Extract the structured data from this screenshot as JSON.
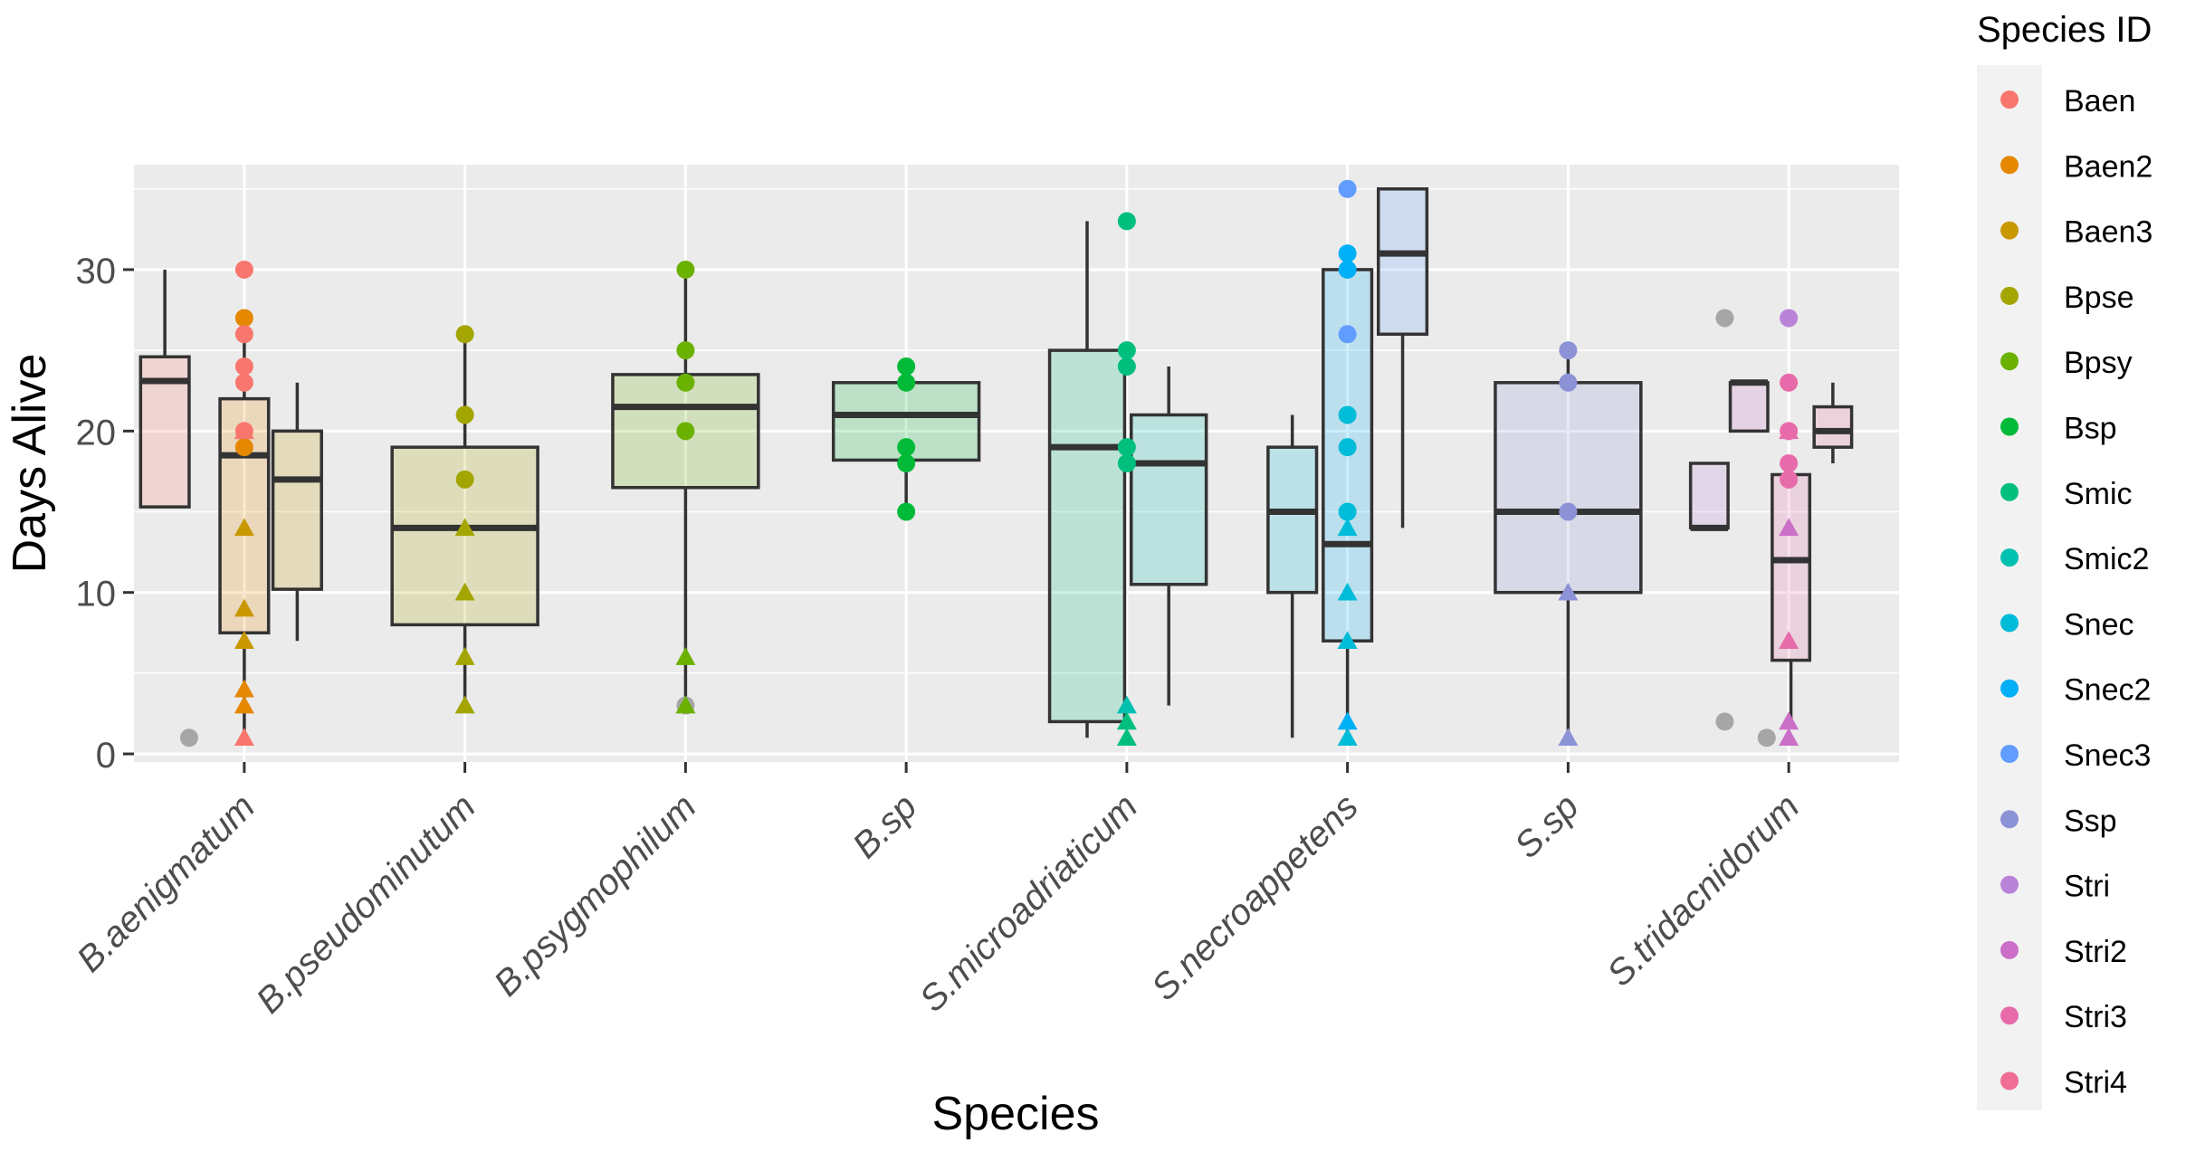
{
  "chart_data": {
    "type": "boxplot",
    "xlabel": "Species",
    "ylabel": "Days Alive",
    "ylim": [
      -0.5,
      36.5
    ],
    "yticks": [
      0,
      10,
      20,
      30
    ],
    "yticklabels": [
      "0",
      "10",
      "20",
      "30"
    ],
    "grid": true,
    "legend": {
      "title": "Species ID",
      "placement": "right",
      "entries": [
        "Baen",
        "Baen2",
        "Baen3",
        "Bpse",
        "Bpsy",
        "Bsp",
        "Smic",
        "Smic2",
        "Snec",
        "Snec2",
        "Snec3",
        "Ssp",
        "Stri",
        "Stri2",
        "Stri3",
        "Stri4"
      ]
    },
    "colors": {
      "Baen": "#F8766D",
      "Baen2": "#E58700",
      "Baen3": "#C99800",
      "Bpse": "#A3A500",
      "Bpsy": "#6BB100",
      "Bsp": "#00BA38",
      "Smic": "#00BF7D",
      "Smic2": "#00C0AF",
      "Snec": "#00BCD8",
      "Snec2": "#00B0F6",
      "Snec3": "#619CFF",
      "Ssp": "#8B93D6",
      "Stri": "#B983D9",
      "Stri2": "#CB6FC8",
      "Stri3": "#E76BAA",
      "Stri4": "#F06D96",
      "NA": "#A6A6A6"
    },
    "categories": [
      "B.aenigmatum",
      "B.pseudominutum",
      "B.psygmophilum",
      "B.sp",
      "S.microadriaticum",
      "S.necroappetens",
      "S.sp",
      "S.tridacnidorum"
    ],
    "boxes": [
      {
        "category": 0,
        "offset": -0.36,
        "width": 0.22,
        "fill": "#F8766D",
        "q1": 15.3,
        "median": 23.1,
        "q3": 24.6,
        "whisker_low": 15.3,
        "whisker_high": 30
      },
      {
        "category": 0,
        "offset": 0.0,
        "width": 0.22,
        "fill": "#E58700",
        "q1": 7.5,
        "median": 18.5,
        "q3": 22,
        "whisker_low": 1,
        "whisker_high": 27
      },
      {
        "category": 0,
        "offset": 0.24,
        "width": 0.22,
        "fill": "#C99800",
        "q1": 10.2,
        "median": 17,
        "q3": 20,
        "whisker_low": 7,
        "whisker_high": 23
      },
      {
        "category": 1,
        "offset": 0.0,
        "width": 0.66,
        "fill": "#A3A500",
        "q1": 8,
        "median": 14,
        "q3": 19,
        "whisker_low": 3,
        "whisker_high": 26
      },
      {
        "category": 2,
        "offset": 0.0,
        "width": 0.66,
        "fill": "#6BB100",
        "q1": 16.5,
        "median": 21.5,
        "q3": 23.5,
        "whisker_low": 3,
        "whisker_high": 30
      },
      {
        "category": 3,
        "offset": 0.0,
        "width": 0.66,
        "fill": "#00BA38",
        "q1": 18.2,
        "median": 21,
        "q3": 23,
        "whisker_low": 15,
        "whisker_high": 24
      },
      {
        "category": 4,
        "offset": -0.18,
        "width": 0.34,
        "fill": "#00BF7D",
        "q1": 2,
        "median": 19,
        "q3": 25,
        "whisker_low": 1,
        "whisker_high": 33
      },
      {
        "category": 4,
        "offset": 0.19,
        "width": 0.34,
        "fill": "#00C0AF",
        "q1": 10.5,
        "median": 18,
        "q3": 21,
        "whisker_low": 3,
        "whisker_high": 24
      },
      {
        "category": 5,
        "offset": -0.25,
        "width": 0.22,
        "fill": "#00BCD8",
        "q1": 10,
        "median": 15,
        "q3": 19,
        "whisker_low": 1,
        "whisker_high": 21
      },
      {
        "category": 5,
        "offset": 0.0,
        "width": 0.22,
        "fill": "#00B0F6",
        "q1": 7,
        "median": 13,
        "q3": 30,
        "whisker_low": 1,
        "whisker_high": 31
      },
      {
        "category": 5,
        "offset": 0.25,
        "width": 0.22,
        "fill": "#619CFF",
        "q1": 26,
        "median": 31,
        "q3": 35,
        "whisker_low": 14,
        "whisker_high": 35
      },
      {
        "category": 6,
        "offset": 0.0,
        "width": 0.66,
        "fill": "#8B93D6",
        "q1": 10,
        "median": 15,
        "q3": 23,
        "whisker_low": 1,
        "whisker_high": 25
      },
      {
        "category": 7,
        "offset": -0.36,
        "width": 0.17,
        "fill": "#B983D9",
        "q1": 14,
        "median": 14,
        "q3": 18,
        "whisker_low": 14,
        "whisker_high": 18
      },
      {
        "category": 7,
        "offset": -0.18,
        "width": 0.17,
        "fill": "#CB6FC8",
        "q1": 20,
        "median": 23,
        "q3": 23,
        "whisker_low": 20,
        "whisker_high": 23
      },
      {
        "category": 7,
        "offset": 0.01,
        "width": 0.17,
        "fill": "#E76BAA",
        "q1": 5.8,
        "median": 12,
        "q3": 17.3,
        "whisker_low": 2,
        "whisker_high": 18
      },
      {
        "category": 7,
        "offset": 0.2,
        "width": 0.17,
        "fill": "#F06D96",
        "q1": 19,
        "median": 20,
        "q3": 21.5,
        "whisker_low": 18,
        "whisker_high": 23
      }
    ],
    "points": [
      {
        "category": 0,
        "offset": -0.25,
        "y": 1,
        "id": "NA",
        "shape": "circle"
      },
      {
        "category": 0,
        "offset": 0.0,
        "y": 30,
        "id": "Baen",
        "shape": "circle"
      },
      {
        "category": 0,
        "offset": 0.0,
        "y": 27,
        "id": "Baen2",
        "shape": "circle"
      },
      {
        "category": 0,
        "offset": 0.0,
        "y": 26,
        "id": "Baen",
        "shape": "circle"
      },
      {
        "category": 0,
        "offset": 0.0,
        "y": 24,
        "id": "Baen",
        "shape": "circle"
      },
      {
        "category": 0,
        "offset": 0.0,
        "y": 23,
        "id": "Baen",
        "shape": "circle"
      },
      {
        "category": 0,
        "offset": 0.0,
        "y": 20,
        "id": "Baen",
        "shape": "circle"
      },
      {
        "category": 0,
        "offset": 0.0,
        "y": 19,
        "id": "Baen2",
        "shape": "circle"
      },
      {
        "category": 0,
        "offset": 0.0,
        "y": 20,
        "id": "Baen",
        "shape": "triangle"
      },
      {
        "category": 0,
        "offset": 0.0,
        "y": 14,
        "id": "Baen3",
        "shape": "triangle"
      },
      {
        "category": 0,
        "offset": 0.0,
        "y": 9,
        "id": "Baen3",
        "shape": "triangle"
      },
      {
        "category": 0,
        "offset": 0.0,
        "y": 7,
        "id": "Baen3",
        "shape": "triangle"
      },
      {
        "category": 0,
        "offset": 0.0,
        "y": 4,
        "id": "Baen2",
        "shape": "triangle"
      },
      {
        "category": 0,
        "offset": 0.0,
        "y": 3,
        "id": "Baen2",
        "shape": "triangle"
      },
      {
        "category": 0,
        "offset": 0.0,
        "y": 1,
        "id": "Baen",
        "shape": "triangle"
      },
      {
        "category": 1,
        "offset": 0.0,
        "y": 26,
        "id": "Bpse",
        "shape": "circle"
      },
      {
        "category": 1,
        "offset": 0.0,
        "y": 21,
        "id": "Bpse",
        "shape": "circle"
      },
      {
        "category": 1,
        "offset": 0.0,
        "y": 17,
        "id": "Bpse",
        "shape": "circle"
      },
      {
        "category": 1,
        "offset": 0.0,
        "y": 14,
        "id": "Bpse",
        "shape": "triangle"
      },
      {
        "category": 1,
        "offset": 0.0,
        "y": 10,
        "id": "Bpse",
        "shape": "triangle"
      },
      {
        "category": 1,
        "offset": 0.0,
        "y": 6,
        "id": "Bpse",
        "shape": "triangle"
      },
      {
        "category": 1,
        "offset": 0.0,
        "y": 3,
        "id": "Bpse",
        "shape": "triangle"
      },
      {
        "category": 2,
        "offset": 0.0,
        "y": 30,
        "id": "Bpsy",
        "shape": "circle"
      },
      {
        "category": 2,
        "offset": 0.0,
        "y": 25,
        "id": "Bpsy",
        "shape": "circle"
      },
      {
        "category": 2,
        "offset": 0.0,
        "y": 23,
        "id": "Bpsy",
        "shape": "circle"
      },
      {
        "category": 2,
        "offset": 0.0,
        "y": 20,
        "id": "Bpsy",
        "shape": "circle"
      },
      {
        "category": 2,
        "offset": 0.0,
        "y": 3,
        "id": "NA",
        "shape": "circle"
      },
      {
        "category": 2,
        "offset": 0.0,
        "y": 6,
        "id": "Bpsy",
        "shape": "triangle"
      },
      {
        "category": 2,
        "offset": 0.0,
        "y": 3,
        "id": "Bpsy",
        "shape": "triangle"
      },
      {
        "category": 3,
        "offset": 0.0,
        "y": 24,
        "id": "Bsp",
        "shape": "circle"
      },
      {
        "category": 3,
        "offset": 0.0,
        "y": 23,
        "id": "Bsp",
        "shape": "circle"
      },
      {
        "category": 3,
        "offset": 0.0,
        "y": 19,
        "id": "Bsp",
        "shape": "circle"
      },
      {
        "category": 3,
        "offset": 0.0,
        "y": 18,
        "id": "Bsp",
        "shape": "circle"
      },
      {
        "category": 3,
        "offset": 0.0,
        "y": 15,
        "id": "Bsp",
        "shape": "circle"
      },
      {
        "category": 4,
        "offset": 0.0,
        "y": 33,
        "id": "Smic",
        "shape": "circle"
      },
      {
        "category": 4,
        "offset": 0.0,
        "y": 25,
        "id": "Smic",
        "shape": "circle"
      },
      {
        "category": 4,
        "offset": 0.0,
        "y": 24,
        "id": "Smic",
        "shape": "circle"
      },
      {
        "category": 4,
        "offset": 0.0,
        "y": 19,
        "id": "Smic",
        "shape": "circle"
      },
      {
        "category": 4,
        "offset": 0.0,
        "y": 18,
        "id": "Smic",
        "shape": "circle"
      },
      {
        "category": 4,
        "offset": 0.0,
        "y": 3,
        "id": "Smic2",
        "shape": "triangle"
      },
      {
        "category": 4,
        "offset": 0.0,
        "y": 2,
        "id": "Smic",
        "shape": "triangle"
      },
      {
        "category": 4,
        "offset": 0.0,
        "y": 1,
        "id": "Smic",
        "shape": "triangle"
      },
      {
        "category": 5,
        "offset": 0.0,
        "y": 35,
        "id": "Snec3",
        "shape": "circle"
      },
      {
        "category": 5,
        "offset": 0.0,
        "y": 31,
        "id": "Snec2",
        "shape": "circle"
      },
      {
        "category": 5,
        "offset": 0.0,
        "y": 30,
        "id": "Snec2",
        "shape": "circle"
      },
      {
        "category": 5,
        "offset": 0.0,
        "y": 26,
        "id": "Snec3",
        "shape": "circle"
      },
      {
        "category": 5,
        "offset": 0.0,
        "y": 21,
        "id": "Snec",
        "shape": "circle"
      },
      {
        "category": 5,
        "offset": 0.0,
        "y": 19,
        "id": "Snec",
        "shape": "circle"
      },
      {
        "category": 5,
        "offset": 0.0,
        "y": 15,
        "id": "Snec",
        "shape": "circle"
      },
      {
        "category": 5,
        "offset": 0.0,
        "y": 14,
        "id": "Snec",
        "shape": "triangle"
      },
      {
        "category": 5,
        "offset": 0.0,
        "y": 10,
        "id": "Snec",
        "shape": "triangle"
      },
      {
        "category": 5,
        "offset": 0.0,
        "y": 7,
        "id": "Snec",
        "shape": "triangle"
      },
      {
        "category": 5,
        "offset": 0.0,
        "y": 2,
        "id": "Snec2",
        "shape": "triangle"
      },
      {
        "category": 5,
        "offset": 0.0,
        "y": 1,
        "id": "Snec",
        "shape": "triangle"
      },
      {
        "category": 6,
        "offset": 0.0,
        "y": 25,
        "id": "Ssp",
        "shape": "circle"
      },
      {
        "category": 6,
        "offset": 0.0,
        "y": 23,
        "id": "Ssp",
        "shape": "circle"
      },
      {
        "category": 6,
        "offset": 0.0,
        "y": 15,
        "id": "Ssp",
        "shape": "circle"
      },
      {
        "category": 6,
        "offset": 0.0,
        "y": 10,
        "id": "Ssp",
        "shape": "triangle"
      },
      {
        "category": 6,
        "offset": 0.0,
        "y": 1,
        "id": "Ssp",
        "shape": "triangle"
      },
      {
        "category": 7,
        "offset": -0.29,
        "y": 27,
        "id": "NA",
        "shape": "circle"
      },
      {
        "category": 7,
        "offset": -0.29,
        "y": 2,
        "id": "NA",
        "shape": "circle"
      },
      {
        "category": 7,
        "offset": -0.1,
        "y": 1,
        "id": "NA",
        "shape": "circle"
      },
      {
        "category": 7,
        "offset": 0.0,
        "y": 27,
        "id": "Stri",
        "shape": "circle"
      },
      {
        "category": 7,
        "offset": 0.0,
        "y": 23,
        "id": "Stri3",
        "shape": "circle"
      },
      {
        "category": 7,
        "offset": 0.0,
        "y": 20,
        "id": "Stri3",
        "shape": "circle"
      },
      {
        "category": 7,
        "offset": 0.0,
        "y": 18,
        "id": "Stri3",
        "shape": "circle"
      },
      {
        "category": 7,
        "offset": 0.0,
        "y": 17,
        "id": "Stri3",
        "shape": "circle"
      },
      {
        "category": 7,
        "offset": 0.0,
        "y": 20,
        "id": "Stri3",
        "shape": "triangle"
      },
      {
        "category": 7,
        "offset": 0.0,
        "y": 14,
        "id": "Stri2",
        "shape": "triangle"
      },
      {
        "category": 7,
        "offset": 0.0,
        "y": 7,
        "id": "Stri3",
        "shape": "triangle"
      },
      {
        "category": 7,
        "offset": 0.0,
        "y": 2,
        "id": "Stri2",
        "shape": "triangle"
      },
      {
        "category": 7,
        "offset": 0.0,
        "y": 1,
        "id": "Stri2",
        "shape": "triangle"
      }
    ]
  }
}
